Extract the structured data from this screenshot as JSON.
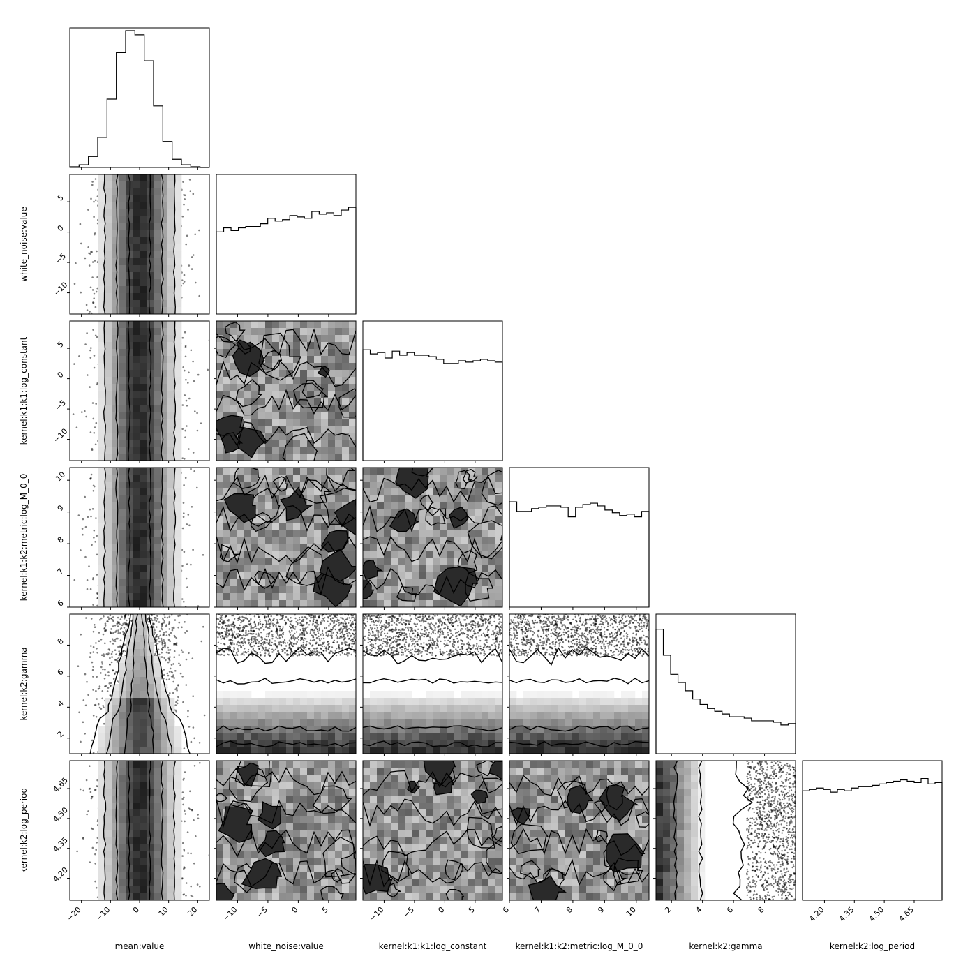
{
  "chart_data": {
    "type": "corner",
    "title": "",
    "parameters": [
      {
        "label": "mean:value",
        "range": [
          -24,
          24
        ],
        "ticks": [
          -20,
          -10,
          0,
          10,
          20
        ],
        "tick_labels": [
          "−20",
          "−10",
          "0",
          "10",
          "20"
        ],
        "hist": [
          0.005,
          0.02,
          0.08,
          0.22,
          0.5,
          0.84,
          1.0,
          0.97,
          0.78,
          0.45,
          0.19,
          0.06,
          0.02,
          0.005,
          0.0
        ]
      },
      {
        "label": "white_noise:value",
        "range": [
          -13.5,
          9.5
        ],
        "ticks": [
          -10,
          -5,
          0,
          5
        ],
        "tick_labels": [
          "−10",
          "−5",
          "0",
          "5"
        ],
        "hist": [
          0.6,
          0.63,
          0.61,
          0.63,
          0.64,
          0.64,
          0.66,
          0.7,
          0.68,
          0.69,
          0.72,
          0.71,
          0.7,
          0.75,
          0.73,
          0.74,
          0.72,
          0.76,
          0.78
        ]
      },
      {
        "label": "kernel:k1:k1:log_constant",
        "range": [
          -13.5,
          9.5
        ],
        "ticks": [
          -10,
          -5,
          0,
          5
        ],
        "tick_labels": [
          "−10",
          "−5",
          "0",
          "5"
        ],
        "hist": [
          0.81,
          0.78,
          0.79,
          0.75,
          0.8,
          0.77,
          0.79,
          0.77,
          0.77,
          0.76,
          0.74,
          0.71,
          0.71,
          0.73,
          0.72,
          0.73,
          0.74,
          0.73,
          0.72
        ]
      },
      {
        "label": "kernel:k1:k2:metric:log_M_0_0",
        "range": [
          6,
          10.4
        ],
        "ticks": [
          6,
          7,
          8,
          9,
          10
        ],
        "tick_labels": [
          "6",
          "7",
          "8",
          "9",
          "10"
        ],
        "hist": [
          0.77,
          0.7,
          0.7,
          0.72,
          0.73,
          0.74,
          0.74,
          0.73,
          0.66,
          0.73,
          0.75,
          0.76,
          0.74,
          0.71,
          0.69,
          0.67,
          0.68,
          0.66,
          0.7
        ]
      },
      {
        "label": "kernel:k2:gamma",
        "range": [
          1,
          10
        ],
        "ticks": [
          2,
          4,
          6,
          8
        ],
        "tick_labels": [
          "2",
          "4",
          "6",
          "8"
        ],
        "hist": [
          0.91,
          0.72,
          0.58,
          0.52,
          0.46,
          0.4,
          0.36,
          0.33,
          0.31,
          0.29,
          0.27,
          0.27,
          0.26,
          0.24,
          0.24,
          0.24,
          0.23,
          0.21,
          0.22
        ]
      },
      {
        "label": "kernel:k2:log_period",
        "range": [
          4.09,
          4.79
        ],
        "ticks": [
          4.2,
          4.35,
          4.5,
          4.65
        ],
        "tick_labels": [
          "4.20",
          "4.35",
          "4.50",
          "4.65"
        ],
        "hist": [
          0.8,
          0.81,
          0.82,
          0.81,
          0.79,
          0.81,
          0.8,
          0.82,
          0.83,
          0.83,
          0.84,
          0.85,
          0.86,
          0.87,
          0.88,
          0.87,
          0.86,
          0.89,
          0.85,
          0.86
        ]
      }
    ],
    "legend": "none",
    "grid": false
  }
}
